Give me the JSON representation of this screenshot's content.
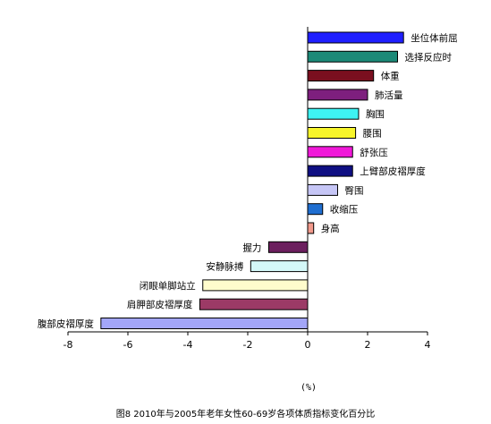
{
  "chart_data": {
    "type": "bar",
    "orientation": "horizontal",
    "xlim": [
      -8,
      4
    ],
    "xticks": [
      -8,
      -6,
      -4,
      -2,
      0,
      2,
      4
    ],
    "xlabel": "(%)",
    "caption": "图8  2010年与2005年老年女性60-69岁各项体质指标变化百分比",
    "grid": false,
    "categories": [
      "坐位体前屈",
      "选择反应时",
      "体重",
      "肺活量",
      "胸围",
      "腰围",
      "舒张压",
      "上臂部皮褶厚度",
      "臀围",
      "收缩压",
      "身高",
      "握力",
      "安静脉搏",
      "闭眼单脚站立",
      "肩胛部皮褶厚度",
      "腹部皮褶厚度"
    ],
    "values": [
      3.2,
      3.0,
      2.2,
      2.0,
      1.7,
      1.6,
      1.5,
      1.5,
      1.0,
      0.5,
      0.2,
      -1.3,
      -1.9,
      -3.5,
      -3.6,
      -6.9
    ],
    "colors": [
      "#1f1fff",
      "#1c8a78",
      "#7a0f1f",
      "#7e1f7e",
      "#3ef3f3",
      "#f7f52b",
      "#f018d8",
      "#0f0f82",
      "#c6c6f6",
      "#1f6ed0",
      "#f29a8c",
      "#6c1f5e",
      "#d4f8f8",
      "#fffccc",
      "#9c3a66",
      "#a3a6f8"
    ]
  }
}
